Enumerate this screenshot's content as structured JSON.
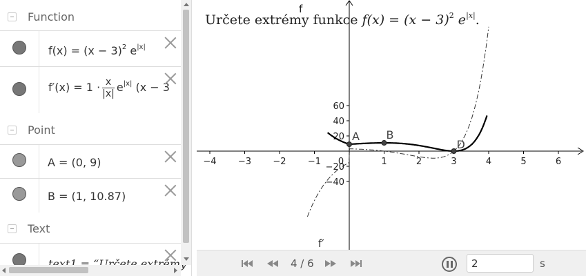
{
  "algebra": {
    "categories": {
      "function": "Function",
      "point": "Point",
      "text": "Text"
    },
    "functions": {
      "f": {
        "lhs": "f(x) = (x − 3)",
        "exp": "2",
        "mid": " e",
        "exp2": "|x|"
      },
      "fprime": {
        "lhs": "f′(x) = 1 ·",
        "num": "x",
        "den": "|x|",
        "rest": "e",
        "exp": "|x|",
        "tail": " (x − 3"
      }
    },
    "points": {
      "A": "A = (0, 9)",
      "B": "B = (1, 10.87)"
    },
    "texts": {
      "text1": "text1 = “Určete extrémy"
    }
  },
  "graphics": {
    "title": {
      "pre": "Určete extrémy funkce ",
      "fx": "f(x) = (x − 3)",
      "exp": "2",
      "e": " e",
      "exp2": "|x|",
      "end": "."
    },
    "x_ticks": [
      "−4",
      "−3",
      "−2",
      "−1",
      "0",
      "1",
      "2",
      "3",
      "4",
      "5",
      "6"
    ],
    "y_ticks": [
      "60",
      "40",
      "20",
      "−20",
      "−40"
    ],
    "labels": {
      "A": "A",
      "B": "B",
      "D": "D",
      "f": "f",
      "fprime": "f′"
    },
    "colors": {
      "curve": "#000000",
      "axis": "#000000",
      "point": "#444444"
    }
  },
  "chart_data": {
    "type": "line",
    "series": [
      {
        "name": "f",
        "x": [
          -0.5,
          -0.3,
          0,
          0.5,
          1,
          1.5,
          2,
          2.5,
          3,
          3.3,
          3.6,
          3.8
        ],
        "y": [
          20.2,
          14.6,
          9,
          10.3,
          10.87,
          10.1,
          7.4,
          3.0,
          0,
          2.4,
          13.2,
          28.6
        ]
      },
      {
        "name": "f′",
        "x": [
          -1.0,
          -0.6,
          0,
          1,
          2,
          2.5,
          3,
          3.5,
          3.9
        ],
        "y": [
          -44,
          -27,
          3,
          0,
          -7,
          -9,
          0,
          41,
          64
        ]
      }
    ],
    "points": [
      {
        "label": "A",
        "x": 0,
        "y": 9
      },
      {
        "label": "B",
        "x": 1,
        "y": 10.87
      },
      {
        "label": "D",
        "x": 3,
        "y": 0
      }
    ],
    "xlim": [
      -4.5,
      6.8
    ],
    "ylim": [
      -60,
      95
    ]
  },
  "playback": {
    "page": "4 / 6",
    "speed_value": "2",
    "speed_unit": "s"
  }
}
